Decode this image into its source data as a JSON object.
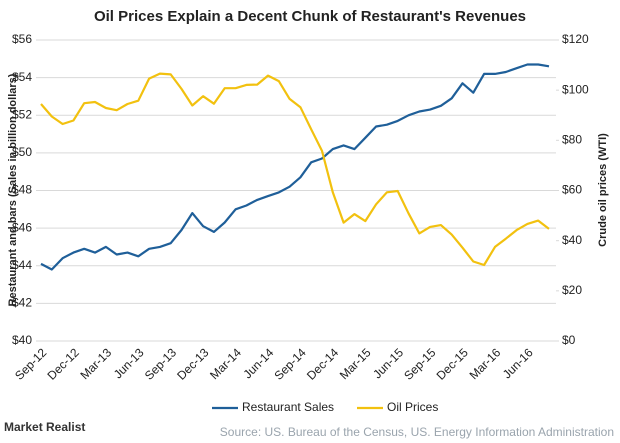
{
  "chart_data": {
    "type": "line",
    "title": "Oil Prices Explain a Decent Chunk of Restaurant's Revenues",
    "ylabel": "Restaurant and bars (Sales in billion dollars)",
    "y2label": "Crude oil prices (WTI)",
    "source": "Source: US. Bureau of the Census, US. Energy Information Administration",
    "brand": "Market Realist",
    "categories": [
      "Sep-12",
      null,
      null,
      "Dec-12",
      null,
      null,
      "Mar-13",
      null,
      null,
      "Jun-13",
      null,
      null,
      "Sep-13",
      null,
      null,
      "Dec-13",
      null,
      null,
      "Mar-14",
      null,
      null,
      "Jun-14",
      null,
      null,
      "Sep-14",
      null,
      null,
      "Dec-14",
      null,
      null,
      "Mar-15",
      null,
      null,
      "Jun-15",
      null,
      null,
      "Sep-15",
      null,
      null,
      "Dec-15",
      null,
      null,
      "Mar-16",
      null,
      null,
      "Jun-16",
      null,
      null
    ],
    "series": [
      {
        "name": "Restaurant Sales",
        "color": "#1f5f99",
        "axis": "y",
        "values": [
          44.1,
          43.8,
          44.4,
          44.7,
          44.9,
          44.7,
          45.0,
          44.6,
          44.7,
          44.5,
          44.9,
          45.0,
          45.2,
          45.9,
          46.8,
          46.1,
          45.8,
          46.3,
          47.0,
          47.2,
          47.5,
          47.7,
          47.9,
          48.2,
          48.7,
          49.5,
          49.7,
          50.2,
          50.4,
          50.2,
          50.8,
          51.4,
          51.5,
          51.7,
          52.0,
          52.2,
          52.3,
          52.5,
          52.9,
          53.7,
          53.2,
          54.2,
          54.2,
          54.3,
          54.5,
          54.7,
          54.7,
          54.6
        ]
      },
      {
        "name": "Oil Prices",
        "color": "#f2c10f",
        "axis": "y2",
        "values": [
          94.5,
          89.5,
          86.5,
          87.9,
          94.8,
          95.3,
          92.9,
          92.0,
          94.5,
          95.8,
          104.6,
          106.6,
          106.3,
          100.5,
          93.9,
          97.6,
          94.6,
          100.8,
          100.8,
          102.1,
          102.2,
          105.8,
          103.6,
          96.5,
          93.2,
          84.4,
          75.8,
          59.3,
          47.2,
          50.6,
          47.8,
          54.5,
          59.3,
          59.8,
          50.9,
          42.9,
          45.5,
          46.2,
          42.4,
          37.2,
          31.7,
          30.3,
          37.5,
          40.8,
          44.2,
          46.7,
          48.0,
          44.7
        ]
      }
    ],
    "ylim": [
      40,
      56
    ],
    "yticks": [
      {
        "value": 40,
        "label": "$40"
      },
      {
        "value": 42,
        "label": "$42"
      },
      {
        "value": 44,
        "label": "$44"
      },
      {
        "value": 46,
        "label": "$46"
      },
      {
        "value": 48,
        "label": "$48"
      },
      {
        "value": 50,
        "label": "$50"
      },
      {
        "value": 52,
        "label": "$52"
      },
      {
        "value": 54,
        "label": "$54"
      },
      {
        "value": 56,
        "label": "$56"
      }
    ],
    "y2lim": [
      0,
      120
    ],
    "y2ticks": [
      {
        "value": 0,
        "label": "$0"
      },
      {
        "value": 20,
        "label": "$20"
      },
      {
        "value": 40,
        "label": "$40"
      },
      {
        "value": 60,
        "label": "$60"
      },
      {
        "value": 80,
        "label": "$80"
      },
      {
        "value": 100,
        "label": "$100"
      },
      {
        "value": 120,
        "label": "$120"
      }
    ],
    "grid": true,
    "legend": "bottom"
  }
}
